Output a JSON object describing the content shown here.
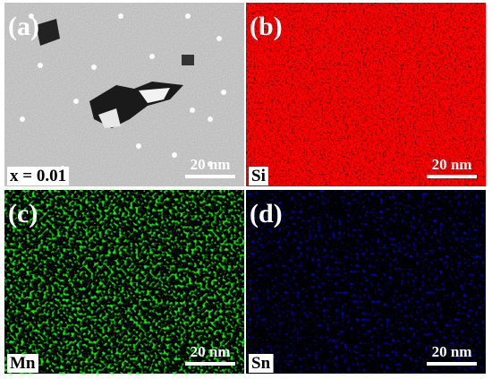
{
  "panels": [
    {
      "label": "(a)",
      "caption": "x = 0.01",
      "scale_bar": "20 nm"
    },
    {
      "label": "(b)",
      "caption": "Si",
      "scale_bar": "20 nm"
    },
    {
      "label": "(c)",
      "caption": "Mn",
      "scale_bar": "20 nm"
    },
    {
      "label": "(d)",
      "caption": "Sn",
      "scale_bar": "20 nm"
    }
  ]
}
